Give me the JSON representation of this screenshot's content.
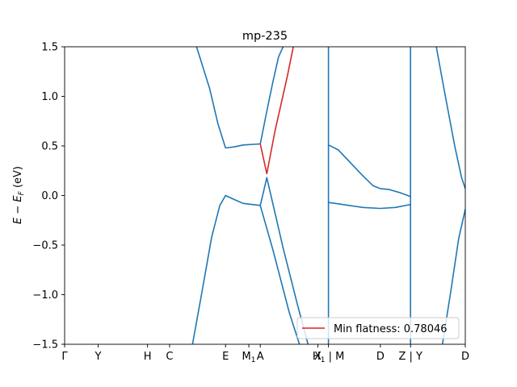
{
  "chart_data": {
    "type": "line",
    "title": "mp-235",
    "xlabel": "",
    "ylabel": "E − E_F (eV)",
    "ylim": [
      -1.5,
      1.5
    ],
    "xlim": [
      0,
      9.81
    ],
    "yticks": [
      -1.5,
      -1.0,
      -0.5,
      0.0,
      0.5,
      1.0,
      1.5
    ],
    "ytick_labels": [
      "−1.5",
      "−1.0",
      "−0.5",
      "0.0",
      "0.5",
      "1.0",
      "1.5"
    ],
    "kpoints": [
      {
        "label": "Γ",
        "x": 0.0
      },
      {
        "label": "Y",
        "x": 0.82
      },
      {
        "label": "H",
        "x": 2.03
      },
      {
        "label": "C",
        "x": 2.57
      },
      {
        "label": "E",
        "x": 3.94
      },
      {
        "label": "M1",
        "x": 4.51
      },
      {
        "label": "A",
        "x": 4.79
      },
      {
        "label": "X",
        "x": 6.2
      },
      {
        "label": "H1 | M",
        "x": 6.46
      },
      {
        "label": "D",
        "x": 7.73
      },
      {
        "label": "Z | Y",
        "x": 8.47
      },
      {
        "label": "D",
        "x": 9.81
      }
    ],
    "grid": false,
    "legend": {
      "placement": "lower-right",
      "entries": [
        {
          "label": "Min flatness: 0.78046",
          "color": "#d62728"
        }
      ]
    },
    "colors": {
      "bands": "#1f77b4",
      "highlight": "#d62728"
    },
    "series": [
      {
        "color": "#1f77b4",
        "x": [
          3.23,
          3.55,
          3.75,
          3.94,
          4.15,
          4.37,
          4.79
        ],
        "y": [
          1.5,
          1.08,
          0.73,
          0.48,
          0.49,
          0.51,
          0.52
        ]
      },
      {
        "color": "#1f77b4",
        "x": [
          4.79,
          4.95,
          5.1,
          5.24,
          5.35
        ],
        "y": [
          0.52,
          0.85,
          1.15,
          1.4,
          1.5
        ]
      },
      {
        "color": "#1f77b4",
        "x": [
          3.13,
          3.35,
          3.6,
          3.8,
          3.94,
          4.15,
          4.37,
          4.79
        ],
        "y": [
          -1.5,
          -1.0,
          -0.42,
          -0.1,
          0.0,
          -0.04,
          -0.08,
          -0.1
        ]
      },
      {
        "color": "#1f77b4",
        "x": [
          4.79,
          4.95
        ],
        "y": [
          -0.1,
          0.18
        ]
      },
      {
        "color": "#1f77b4",
        "x": [
          4.95,
          5.35,
          5.7,
          5.96
        ],
        "y": [
          0.18,
          -0.53,
          -1.1,
          -1.5
        ]
      },
      {
        "color": "#1f77b4",
        "x": [
          4.79,
          5.1,
          5.5,
          5.75
        ],
        "y": [
          -0.1,
          -0.55,
          -1.18,
          -1.5
        ]
      },
      {
        "color": "#1f77b4",
        "x": [
          6.46,
          6.46
        ],
        "y": [
          1.5,
          -1.5
        ]
      },
      {
        "color": "#1f77b4",
        "x": [
          8.47,
          8.47
        ],
        "y": [
          1.5,
          -1.5
        ]
      },
      {
        "color": "#1f77b4",
        "x": [
          6.46,
          6.7,
          7.0,
          7.3,
          7.55,
          7.73,
          7.95,
          8.2,
          8.47
        ],
        "y": [
          0.51,
          0.46,
          0.33,
          0.2,
          0.1,
          0.07,
          0.06,
          0.03,
          -0.01
        ]
      },
      {
        "color": "#1f77b4",
        "x": [
          6.46,
          6.8,
          7.3,
          7.73,
          8.1,
          8.47
        ],
        "y": [
          -0.07,
          -0.09,
          -0.12,
          -0.13,
          -0.12,
          -0.09
        ]
      },
      {
        "color": "#1f77b4",
        "x": [
          9.1,
          9.3,
          9.55,
          9.72,
          9.81
        ],
        "y": [
          1.5,
          1.05,
          0.5,
          0.18,
          0.07
        ]
      },
      {
        "color": "#1f77b4",
        "x": [
          9.25,
          9.45,
          9.65,
          9.81
        ],
        "y": [
          -1.5,
          -0.98,
          -0.43,
          -0.14
        ]
      },
      {
        "color": "#d62728",
        "x": [
          4.79,
          4.95,
          5.15,
          5.45,
          5.6
        ],
        "y": [
          0.52,
          0.22,
          0.65,
          1.2,
          1.5
        ]
      }
    ]
  }
}
